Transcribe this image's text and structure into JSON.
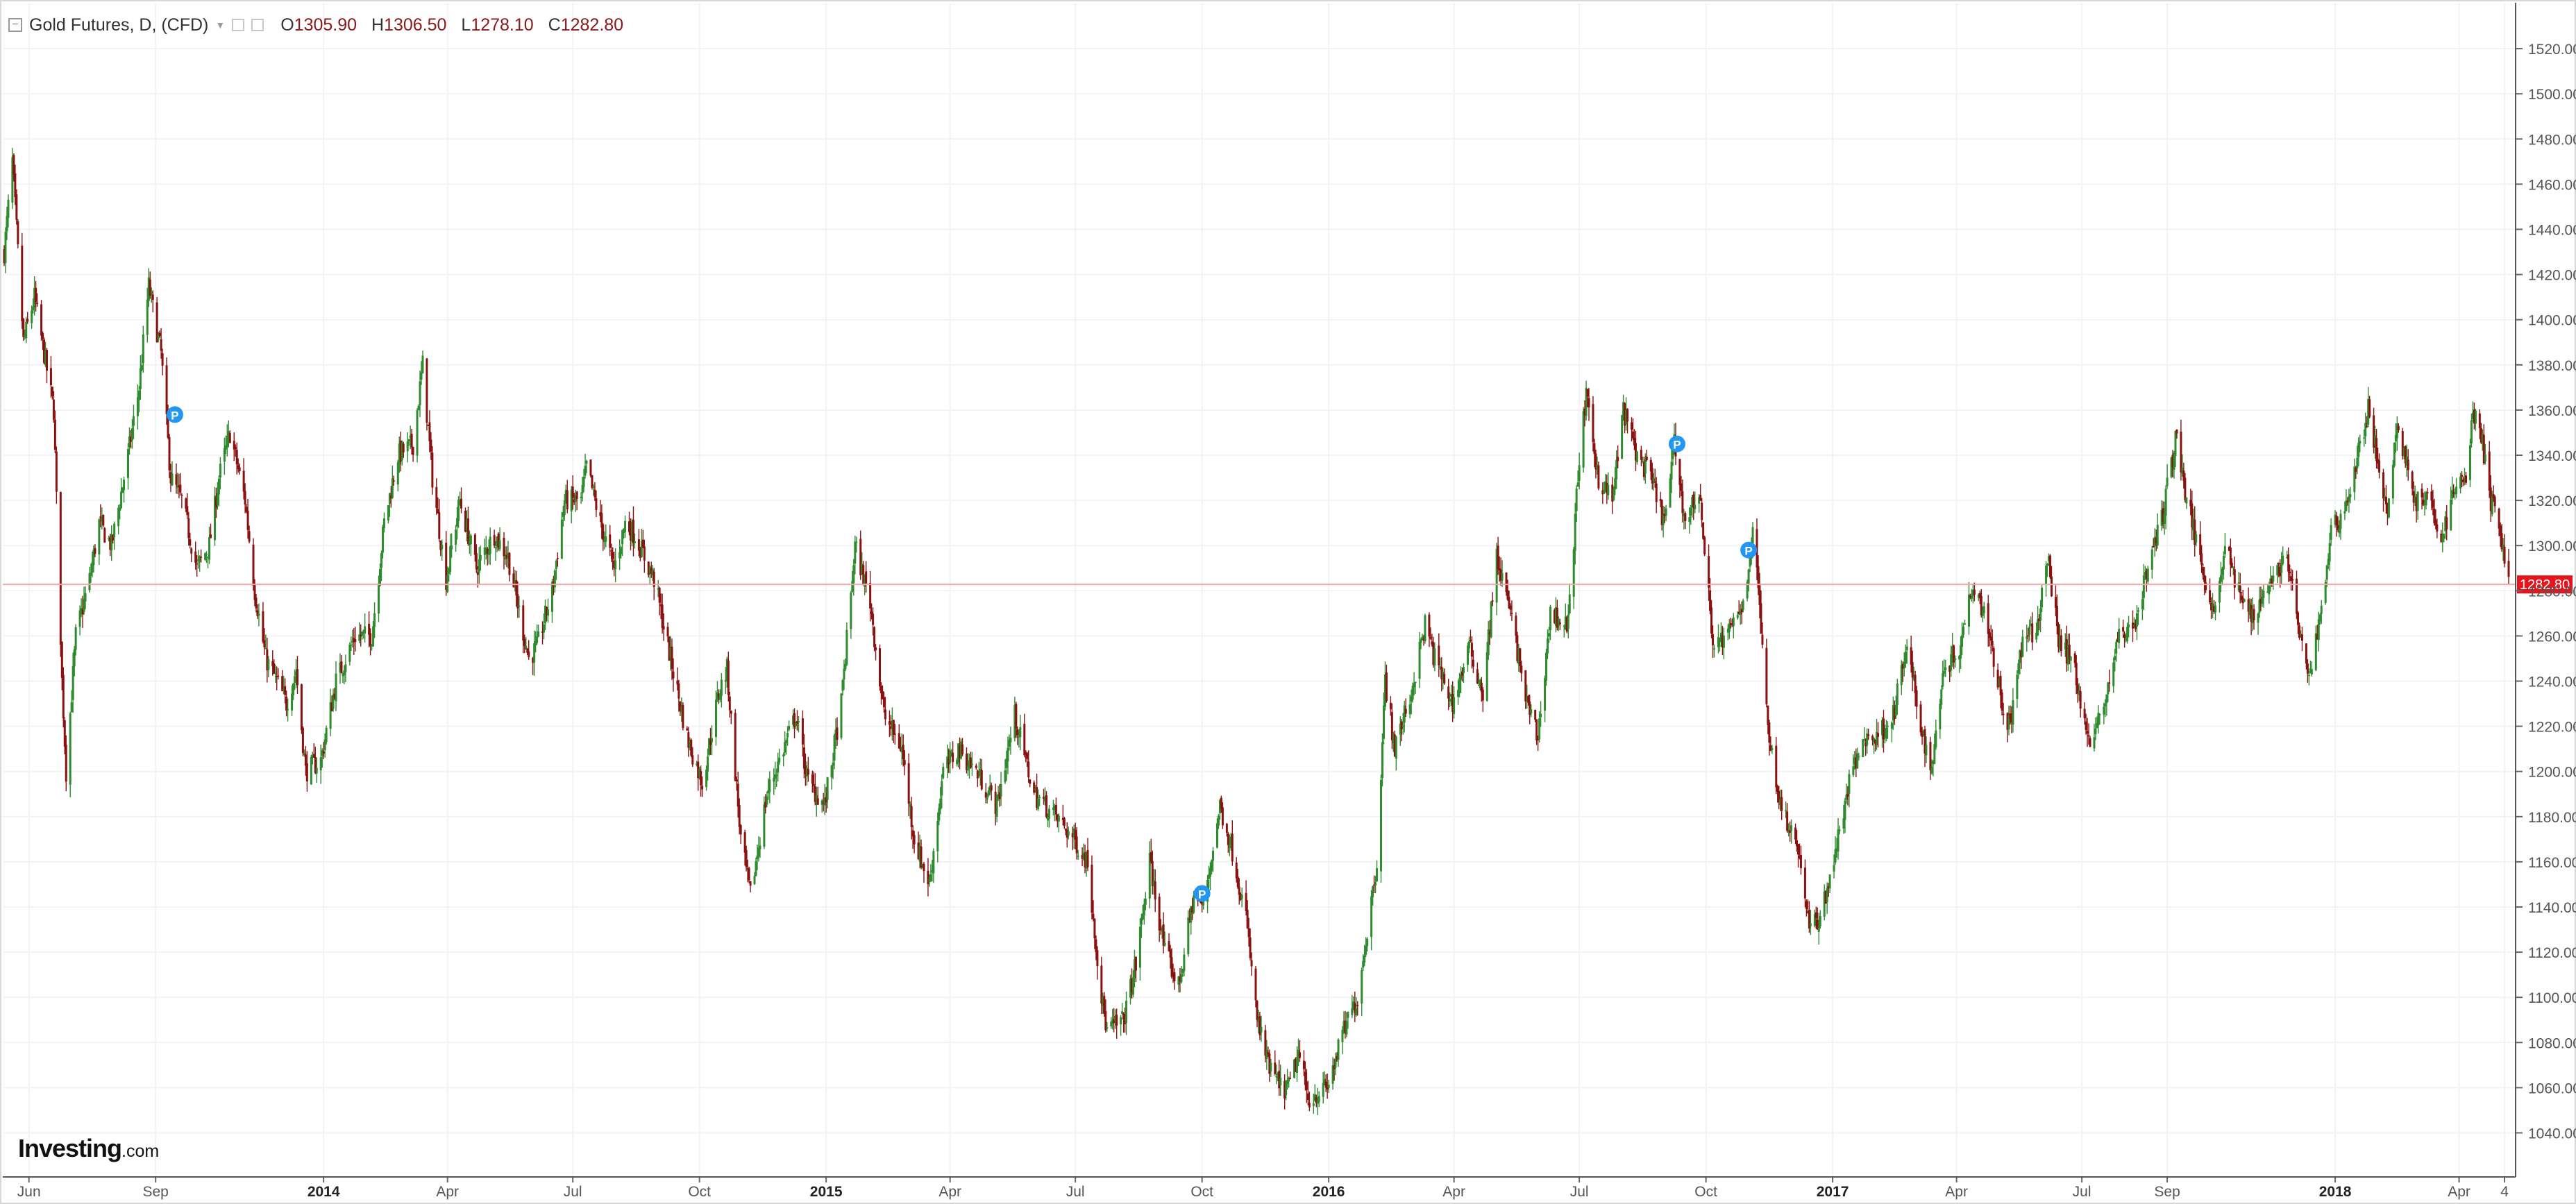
{
  "legend": {
    "title": "Gold Futures, D, (CFD)",
    "open_key": "O",
    "open_value": "1305.90",
    "high_key": "H",
    "high_value": "1306.50",
    "low_key": "L",
    "low_value": "1278.10",
    "close_key": "C",
    "close_value": "1282.80"
  },
  "watermark": {
    "main": "Investing",
    "sub": ".com"
  },
  "colors": {
    "up": "#2e8b2e",
    "down": "#8b1010",
    "grid": "#f1f3f6",
    "price_line": "#f3a6a6",
    "price_tag_bg": "#e8141b",
    "axis_text": "#555555",
    "marker": "#2196f3"
  },
  "chart_data": {
    "type": "candlestick",
    "title": "Gold Futures, D, (CFD)",
    "instrument": "Gold Futures",
    "interval": "D",
    "y_axis": {
      "position": "right",
      "range": [
        1020,
        1530
      ],
      "ticks": [
        1040,
        1060,
        1080,
        1100,
        1120,
        1140,
        1160,
        1180,
        1200,
        1220,
        1240,
        1260,
        1280,
        1300,
        1320,
        1340,
        1360,
        1380,
        1400,
        1420,
        1440,
        1460,
        1480,
        1500,
        1520
      ],
      "tick_labels": [
        "1040.00",
        "1060.00",
        "1080.00",
        "1100.00",
        "1120.00",
        "1140.00",
        "1160.00",
        "1180.00",
        "1200.00",
        "1220.00",
        "1240.00",
        "1260.00",
        "1280.00",
        "1300.00",
        "1320.00",
        "1340.00",
        "1360.00",
        "1380.00",
        "1400.00",
        "1420.00",
        "1440.00",
        "1460.00",
        "1480.00",
        "1500.00",
        "1520.00"
      ]
    },
    "x_axis": {
      "range": [
        "2013-05-14",
        "2018-05-07"
      ],
      "ticks": [
        {
          "label": "Jun",
          "date": "2013-06-01",
          "bold": false
        },
        {
          "label": "Sep",
          "date": "2013-09-01",
          "bold": false
        },
        {
          "label": "2014",
          "date": "2014-01-01",
          "bold": true
        },
        {
          "label": "Apr",
          "date": "2014-04-01",
          "bold": false
        },
        {
          "label": "Jul",
          "date": "2014-07-01",
          "bold": false
        },
        {
          "label": "Oct",
          "date": "2014-10-01",
          "bold": false
        },
        {
          "label": "2015",
          "date": "2015-01-01",
          "bold": true
        },
        {
          "label": "Apr",
          "date": "2015-04-01",
          "bold": false
        },
        {
          "label": "Jul",
          "date": "2015-07-01",
          "bold": false
        },
        {
          "label": "Oct",
          "date": "2015-10-01",
          "bold": false
        },
        {
          "label": "2016",
          "date": "2016-01-01",
          "bold": true
        },
        {
          "label": "Apr",
          "date": "2016-04-01",
          "bold": false
        },
        {
          "label": "Jul",
          "date": "2016-07-01",
          "bold": false
        },
        {
          "label": "Oct",
          "date": "2016-10-01",
          "bold": false
        },
        {
          "label": "2017",
          "date": "2017-01-01",
          "bold": true
        },
        {
          "label": "Apr",
          "date": "2017-04-01",
          "bold": false
        },
        {
          "label": "Jul",
          "date": "2017-07-01",
          "bold": false
        },
        {
          "label": "Sep",
          "date": "2017-09-01",
          "bold": false
        },
        {
          "label": "2018",
          "date": "2018-01-01",
          "bold": true
        },
        {
          "label": "Apr",
          "date": "2018-04-01",
          "bold": false
        },
        {
          "label": "4",
          "date": "2018-05-04",
          "bold": false
        }
      ]
    },
    "grid": true,
    "last_price": {
      "value": 1282.8,
      "label": "1282.80"
    },
    "series_path": [
      {
        "date": "2013-05-14",
        "close": 1430
      },
      {
        "date": "2013-05-20",
        "close": 1470
      },
      {
        "date": "2013-05-28",
        "close": 1390
      },
      {
        "date": "2013-06-05",
        "close": 1410
      },
      {
        "date": "2013-06-12",
        "close": 1385
      },
      {
        "date": "2013-06-19",
        "close": 1360
      },
      {
        "date": "2013-06-25",
        "close": 1240
      },
      {
        "date": "2013-06-28",
        "close": 1200
      },
      {
        "date": "2013-07-05",
        "close": 1260
      },
      {
        "date": "2013-07-15",
        "close": 1285
      },
      {
        "date": "2013-07-22",
        "close": 1310
      },
      {
        "date": "2013-07-31",
        "close": 1300
      },
      {
        "date": "2013-08-12",
        "close": 1340
      },
      {
        "date": "2013-08-20",
        "close": 1370
      },
      {
        "date": "2013-08-27",
        "close": 1415
      },
      {
        "date": "2013-09-05",
        "close": 1385
      },
      {
        "date": "2013-09-12",
        "close": 1330
      },
      {
        "date": "2013-09-20",
        "close": 1320
      },
      {
        "date": "2013-10-01",
        "close": 1290
      },
      {
        "date": "2013-10-10",
        "close": 1300
      },
      {
        "date": "2013-10-17",
        "close": 1330
      },
      {
        "date": "2013-10-25",
        "close": 1350
      },
      {
        "date": "2013-11-05",
        "close": 1320
      },
      {
        "date": "2013-11-12",
        "close": 1280
      },
      {
        "date": "2013-11-20",
        "close": 1250
      },
      {
        "date": "2013-11-28",
        "close": 1240
      },
      {
        "date": "2013-12-05",
        "close": 1230
      },
      {
        "date": "2013-12-12",
        "close": 1245
      },
      {
        "date": "2013-12-19",
        "close": 1200
      },
      {
        "date": "2013-12-30",
        "close": 1205
      },
      {
        "date": "2014-01-10",
        "close": 1240
      },
      {
        "date": "2014-01-24",
        "close": 1260
      },
      {
        "date": "2014-02-05",
        "close": 1260
      },
      {
        "date": "2014-02-14",
        "close": 1310
      },
      {
        "date": "2014-02-24",
        "close": 1340
      },
      {
        "date": "2014-03-07",
        "close": 1345
      },
      {
        "date": "2014-03-14",
        "close": 1380
      },
      {
        "date": "2014-03-21",
        "close": 1330
      },
      {
        "date": "2014-03-31",
        "close": 1285
      },
      {
        "date": "2014-04-10",
        "close": 1320
      },
      {
        "date": "2014-04-22",
        "close": 1290
      },
      {
        "date": "2014-05-05",
        "close": 1305
      },
      {
        "date": "2014-05-15",
        "close": 1295
      },
      {
        "date": "2014-05-30",
        "close": 1250
      },
      {
        "date": "2014-06-05",
        "close": 1255
      },
      {
        "date": "2014-06-16",
        "close": 1280
      },
      {
        "date": "2014-06-25",
        "close": 1320
      },
      {
        "date": "2014-07-07",
        "close": 1320
      },
      {
        "date": "2014-07-11",
        "close": 1335
      },
      {
        "date": "2014-07-21",
        "close": 1310
      },
      {
        "date": "2014-07-31",
        "close": 1290
      },
      {
        "date": "2014-08-08",
        "close": 1310
      },
      {
        "date": "2014-08-15",
        "close": 1305
      },
      {
        "date": "2014-08-29",
        "close": 1285
      },
      {
        "date": "2014-09-10",
        "close": 1250
      },
      {
        "date": "2014-09-22",
        "close": 1215
      },
      {
        "date": "2014-10-03",
        "close": 1195
      },
      {
        "date": "2014-10-15",
        "close": 1235
      },
      {
        "date": "2014-10-21",
        "close": 1245
      },
      {
        "date": "2014-10-31",
        "close": 1170
      },
      {
        "date": "2014-11-07",
        "close": 1145
      },
      {
        "date": "2014-11-19",
        "close": 1190
      },
      {
        "date": "2014-12-01",
        "close": 1210
      },
      {
        "date": "2014-12-10",
        "close": 1225
      },
      {
        "date": "2014-12-19",
        "close": 1195
      },
      {
        "date": "2014-12-31",
        "close": 1185
      },
      {
        "date": "2015-01-12",
        "close": 1230
      },
      {
        "date": "2015-01-22",
        "close": 1300
      },
      {
        "date": "2015-02-02",
        "close": 1275
      },
      {
        "date": "2015-02-12",
        "close": 1225
      },
      {
        "date": "2015-02-25",
        "close": 1210
      },
      {
        "date": "2015-03-06",
        "close": 1170
      },
      {
        "date": "2015-03-17",
        "close": 1150
      },
      {
        "date": "2015-03-27",
        "close": 1200
      },
      {
        "date": "2015-04-07",
        "close": 1210
      },
      {
        "date": "2015-04-20",
        "close": 1200
      },
      {
        "date": "2015-05-05",
        "close": 1185
      },
      {
        "date": "2015-05-18",
        "close": 1225
      },
      {
        "date": "2015-06-01",
        "close": 1190
      },
      {
        "date": "2015-06-17",
        "close": 1180
      },
      {
        "date": "2015-06-30",
        "close": 1170
      },
      {
        "date": "2015-07-10",
        "close": 1160
      },
      {
        "date": "2015-07-20",
        "close": 1100
      },
      {
        "date": "2015-07-24",
        "close": 1085
      },
      {
        "date": "2015-08-05",
        "close": 1090
      },
      {
        "date": "2015-08-14",
        "close": 1115
      },
      {
        "date": "2015-08-24",
        "close": 1160
      },
      {
        "date": "2015-09-04",
        "close": 1120
      },
      {
        "date": "2015-09-14",
        "close": 1105
      },
      {
        "date": "2015-09-25",
        "close": 1145
      },
      {
        "date": "2015-10-02",
        "close": 1140
      },
      {
        "date": "2015-10-14",
        "close": 1185
      },
      {
        "date": "2015-10-23",
        "close": 1165
      },
      {
        "date": "2015-11-02",
        "close": 1135
      },
      {
        "date": "2015-11-10",
        "close": 1090
      },
      {
        "date": "2015-11-18",
        "close": 1070
      },
      {
        "date": "2015-11-27",
        "close": 1060
      },
      {
        "date": "2015-12-03",
        "close": 1060
      },
      {
        "date": "2015-12-10",
        "close": 1075
      },
      {
        "date": "2015-12-17",
        "close": 1055
      },
      {
        "date": "2015-12-31",
        "close": 1060
      },
      {
        "date": "2016-01-12",
        "close": 1085
      },
      {
        "date": "2016-01-22",
        "close": 1100
      },
      {
        "date": "2016-02-05",
        "close": 1160
      },
      {
        "date": "2016-02-11",
        "close": 1240
      },
      {
        "date": "2016-02-18",
        "close": 1210
      },
      {
        "date": "2016-03-01",
        "close": 1235
      },
      {
        "date": "2016-03-11",
        "close": 1265
      },
      {
        "date": "2016-03-18",
        "close": 1250
      },
      {
        "date": "2016-03-31",
        "close": 1230
      },
      {
        "date": "2016-04-12",
        "close": 1255
      },
      {
        "date": "2016-04-22",
        "close": 1235
      },
      {
        "date": "2016-05-02",
        "close": 1295
      },
      {
        "date": "2016-05-12",
        "close": 1270
      },
      {
        "date": "2016-05-24",
        "close": 1230
      },
      {
        "date": "2016-06-01",
        "close": 1215
      },
      {
        "date": "2016-06-10",
        "close": 1270
      },
      {
        "date": "2016-06-23",
        "close": 1265
      },
      {
        "date": "2016-07-01",
        "close": 1340
      },
      {
        "date": "2016-07-06",
        "close": 1365
      },
      {
        "date": "2016-07-15",
        "close": 1330
      },
      {
        "date": "2016-07-25",
        "close": 1320
      },
      {
        "date": "2016-08-02",
        "close": 1360
      },
      {
        "date": "2016-08-12",
        "close": 1340
      },
      {
        "date": "2016-08-22",
        "close": 1330
      },
      {
        "date": "2016-09-01",
        "close": 1310
      },
      {
        "date": "2016-09-08",
        "close": 1345
      },
      {
        "date": "2016-09-16",
        "close": 1310
      },
      {
        "date": "2016-09-26",
        "close": 1325
      },
      {
        "date": "2016-10-04",
        "close": 1270
      },
      {
        "date": "2016-10-07",
        "close": 1255
      },
      {
        "date": "2016-10-17",
        "close": 1260
      },
      {
        "date": "2016-10-28",
        "close": 1275
      },
      {
        "date": "2016-11-04",
        "close": 1305
      },
      {
        "date": "2016-11-09",
        "close": 1275
      },
      {
        "date": "2016-11-14",
        "close": 1225
      },
      {
        "date": "2016-11-24",
        "close": 1185
      },
      {
        "date": "2016-12-02",
        "close": 1175
      },
      {
        "date": "2016-12-09",
        "close": 1160
      },
      {
        "date": "2016-12-15",
        "close": 1130
      },
      {
        "date": "2016-12-23",
        "close": 1135
      },
      {
        "date": "2017-01-05",
        "close": 1170
      },
      {
        "date": "2017-01-13",
        "close": 1195
      },
      {
        "date": "2017-01-24",
        "close": 1215
      },
      {
        "date": "2017-02-02",
        "close": 1215
      },
      {
        "date": "2017-02-14",
        "close": 1225
      },
      {
        "date": "2017-02-24",
        "close": 1255
      },
      {
        "date": "2017-03-06",
        "close": 1220
      },
      {
        "date": "2017-03-14",
        "close": 1200
      },
      {
        "date": "2017-03-22",
        "close": 1245
      },
      {
        "date": "2017-04-03",
        "close": 1255
      },
      {
        "date": "2017-04-13",
        "close": 1285
      },
      {
        "date": "2017-04-24",
        "close": 1265
      },
      {
        "date": "2017-05-04",
        "close": 1230
      },
      {
        "date": "2017-05-10",
        "close": 1220
      },
      {
        "date": "2017-05-18",
        "close": 1255
      },
      {
        "date": "2017-05-30",
        "close": 1265
      },
      {
        "date": "2017-06-06",
        "close": 1295
      },
      {
        "date": "2017-06-14",
        "close": 1260
      },
      {
        "date": "2017-06-26",
        "close": 1245
      },
      {
        "date": "2017-07-07",
        "close": 1210
      },
      {
        "date": "2017-07-17",
        "close": 1230
      },
      {
        "date": "2017-07-28",
        "close": 1260
      },
      {
        "date": "2017-08-08",
        "close": 1265
      },
      {
        "date": "2017-08-18",
        "close": 1290
      },
      {
        "date": "2017-08-29",
        "close": 1315
      },
      {
        "date": "2017-09-08",
        "close": 1350
      },
      {
        "date": "2017-09-15",
        "close": 1320
      },
      {
        "date": "2017-09-25",
        "close": 1295
      },
      {
        "date": "2017-10-05",
        "close": 1270
      },
      {
        "date": "2017-10-13",
        "close": 1300
      },
      {
        "date": "2017-10-25",
        "close": 1275
      },
      {
        "date": "2017-11-03",
        "close": 1270
      },
      {
        "date": "2017-11-15",
        "close": 1285
      },
      {
        "date": "2017-11-27",
        "close": 1295
      },
      {
        "date": "2017-12-05",
        "close": 1265
      },
      {
        "date": "2017-12-12",
        "close": 1240
      },
      {
        "date": "2017-12-20",
        "close": 1265
      },
      {
        "date": "2017-12-29",
        "close": 1305
      },
      {
        "date": "2018-01-10",
        "close": 1320
      },
      {
        "date": "2018-01-25",
        "close": 1360
      },
      {
        "date": "2018-02-02",
        "close": 1335
      },
      {
        "date": "2018-02-08",
        "close": 1310
      },
      {
        "date": "2018-02-15",
        "close": 1355
      },
      {
        "date": "2018-02-28",
        "close": 1320
      },
      {
        "date": "2018-03-08",
        "close": 1320
      },
      {
        "date": "2018-03-20",
        "close": 1305
      },
      {
        "date": "2018-03-29",
        "close": 1325
      },
      {
        "date": "2018-04-06",
        "close": 1330
      },
      {
        "date": "2018-04-11",
        "close": 1360
      },
      {
        "date": "2018-04-18",
        "close": 1345
      },
      {
        "date": "2018-04-24",
        "close": 1320
      },
      {
        "date": "2018-04-30",
        "close": 1310
      },
      {
        "date": "2018-05-04",
        "close": 1295
      },
      {
        "date": "2018-05-07",
        "close": 1283
      }
    ],
    "markers": [
      {
        "label": "P",
        "date": "2013-09-15",
        "price": 1358
      },
      {
        "label": "P",
        "date": "2015-10-01",
        "price": 1146
      },
      {
        "label": "P",
        "date": "2016-09-10",
        "price": 1345
      },
      {
        "label": "P",
        "date": "2016-11-01",
        "price": 1298
      }
    ]
  }
}
